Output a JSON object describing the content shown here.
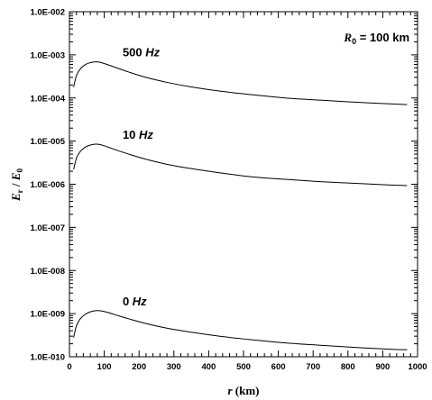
{
  "chart_data": {
    "type": "line",
    "title": "",
    "x_scale": "linear",
    "y_scale": "log",
    "xlim": [
      0,
      1000
    ],
    "ylim": [
      1e-10,
      0.01
    ],
    "x_ticks": [
      0,
      100,
      200,
      300,
      400,
      500,
      600,
      700,
      800,
      900,
      1000
    ],
    "x_tick_labels": [
      "0",
      "100",
      "200",
      "300",
      "400",
      "500",
      "600",
      "700",
      "800",
      "900",
      "1000"
    ],
    "y_ticks": [
      0.01,
      0.001,
      0.0001,
      1e-05,
      1e-06,
      1e-07,
      1e-08,
      1e-09,
      1e-10
    ],
    "y_tick_labels": [
      "1.0E-002",
      "1.0E-003",
      "1.0E-004",
      "1.0E-005",
      "1.0E-006",
      "1.0E-007",
      "1.0E-008",
      "1.0E-009",
      "1.0E-010"
    ],
    "xlabel": {
      "var": "r",
      "unit": " (km)"
    },
    "ylabel": {
      "num": "E",
      "num_sub": "r",
      "sep": " / ",
      "den": "E",
      "den_sub": "0"
    },
    "grid": false,
    "annotation": {
      "var": "R",
      "sub": "0",
      "text": " = 100 km",
      "position": "top-right"
    },
    "series": [
      {
        "name": "500 Hz",
        "label_num": "500",
        "label_unit": "Hz",
        "x": [
          12,
          20,
          30,
          45,
          60,
          75,
          85,
          100,
          130,
          170,
          220,
          280,
          350,
          430,
          520,
          620,
          720,
          820,
          920,
          970
        ],
        "y": [
          0.00018,
          0.00033,
          0.00046,
          0.00059,
          0.00066,
          0.00069,
          0.00068,
          0.00063,
          0.00052,
          0.0004,
          0.0003,
          0.00023,
          0.00018,
          0.000145,
          0.00012,
          0.0001,
          8.9e-05,
          8e-05,
          7.3e-05,
          7e-05
        ]
      },
      {
        "name": "10 Hz",
        "label_num": "10",
        "label_unit": "Hz",
        "x": [
          12,
          20,
          30,
          45,
          60,
          75,
          85,
          100,
          130,
          170,
          220,
          280,
          350,
          430,
          520,
          620,
          720,
          820,
          920,
          970
        ],
        "y": [
          2.2e-06,
          4e-06,
          5.6e-06,
          7.2e-06,
          8.1e-06,
          8.5e-06,
          8.4e-06,
          7.8e-06,
          6.4e-06,
          5e-06,
          3.8e-06,
          2.9e-06,
          2.3e-06,
          1.85e-06,
          1.5e-06,
          1.3e-06,
          1.15e-06,
          1.05e-06,
          9.6e-07,
          9.3e-07
        ]
      },
      {
        "name": "0 Hz",
        "label_num": "0",
        "label_unit": "Hz",
        "x": [
          12,
          20,
          30,
          45,
          60,
          75,
          85,
          100,
          130,
          170,
          220,
          280,
          350,
          430,
          520,
          620,
          720,
          820,
          920,
          970
        ],
        "y": [
          2.8e-10,
          5.2e-10,
          7.4e-10,
          9.6e-10,
          1.1e-09,
          1.17e-09,
          1.17e-09,
          1.12e-09,
          9.5e-10,
          7.6e-10,
          5.9e-10,
          4.6e-10,
          3.7e-10,
          3e-10,
          2.5e-10,
          2.1e-10,
          1.85e-10,
          1.65e-10,
          1.5e-10,
          1.45e-10
        ]
      }
    ]
  }
}
